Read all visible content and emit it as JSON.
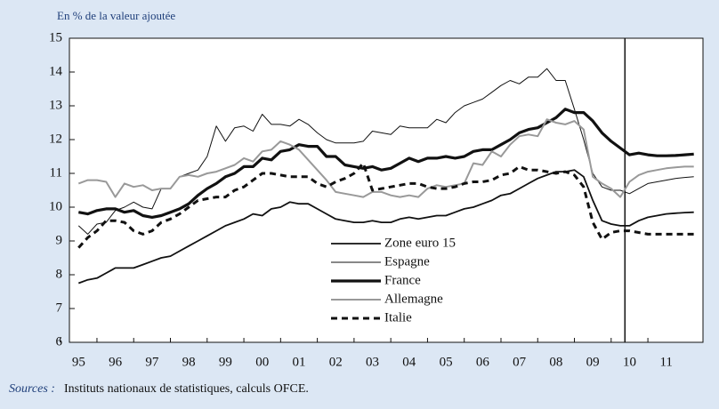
{
  "chart_data": {
    "type": "line",
    "subtitle": "En % de la valeur ajoutée",
    "sources_label": "Sources :",
    "sources_text": "Instituts nationaux de statistiques, calculs OFCE.",
    "x": [
      1995,
      1995.25,
      1995.5,
      1995.75,
      1996,
      1996.25,
      1996.5,
      1996.75,
      1997,
      1997.25,
      1997.5,
      1997.75,
      1998,
      1998.25,
      1998.5,
      1998.75,
      1999,
      1999.25,
      1999.5,
      1999.75,
      2000,
      2000.25,
      2000.5,
      2000.75,
      2001,
      2001.25,
      2001.5,
      2001.75,
      2002,
      2002.25,
      2002.5,
      2002.75,
      2003,
      2003.25,
      2003.5,
      2003.75,
      2004,
      2004.25,
      2004.5,
      2004.75,
      2005,
      2005.25,
      2005.5,
      2005.75,
      2006,
      2006.25,
      2006.5,
      2006.75,
      2007,
      2007.25,
      2007.5,
      2007.75,
      2008,
      2008.25,
      2008.5,
      2008.75,
      2009,
      2009.25,
      2009.5,
      2009.75,
      2010,
      2010.25,
      2010.5,
      2010.75,
      2011,
      2011.25,
      2011.5,
      2011.75
    ],
    "xlim": [
      1994.75,
      2012
    ],
    "xticks": [
      {
        "value": 1995,
        "label": "95"
      },
      {
        "value": 1996,
        "label": "96"
      },
      {
        "value": 1997,
        "label": "97"
      },
      {
        "value": 1998,
        "label": "98"
      },
      {
        "value": 1999,
        "label": "99"
      },
      {
        "value": 2000,
        "label": "00"
      },
      {
        "value": 2001,
        "label": "01"
      },
      {
        "value": 2002,
        "label": "02"
      },
      {
        "value": 2003,
        "label": "03"
      },
      {
        "value": 2004,
        "label": "04"
      },
      {
        "value": 2005,
        "label": "05"
      },
      {
        "value": 2006,
        "label": "06"
      },
      {
        "value": 2007,
        "label": "07"
      },
      {
        "value": 2008,
        "label": "08"
      },
      {
        "value": 2009,
        "label": "09"
      },
      {
        "value": 2010,
        "label": "10"
      },
      {
        "value": 2011,
        "label": "11"
      }
    ],
    "ylim": [
      6,
      15
    ],
    "yticks": [
      6,
      7,
      8,
      9,
      10,
      11,
      12,
      13,
      14,
      15
    ],
    "forecast_line": 2009.875,
    "series": [
      {
        "name": "Zone euro 15",
        "color": "#111111",
        "line_width": 1.8,
        "dashed": false,
        "values": [
          7.75,
          7.85,
          7.9,
          8.05,
          8.2,
          8.2,
          8.2,
          8.3,
          8.4,
          8.5,
          8.55,
          8.7,
          8.85,
          9.0,
          9.15,
          9.3,
          9.45,
          9.55,
          9.65,
          9.8,
          9.75,
          9.95,
          10.0,
          10.15,
          10.1,
          10.1,
          9.95,
          9.8,
          9.65,
          9.6,
          9.55,
          9.55,
          9.6,
          9.55,
          9.55,
          9.65,
          9.7,
          9.65,
          9.7,
          9.75,
          9.75,
          9.85,
          9.95,
          10.0,
          10.1,
          10.2,
          10.35,
          10.4,
          10.55,
          10.7,
          10.85,
          10.95,
          11.05,
          11.05,
          11.1,
          10.9,
          10.2,
          9.6,
          9.5,
          9.45,
          9.45,
          9.6,
          9.7,
          9.75,
          9.8,
          9.82,
          9.84,
          9.85
        ]
      },
      {
        "name": "Espagne",
        "color": "#111111",
        "line_width": 1,
        "dashed": false,
        "values": [
          9.45,
          9.2,
          9.5,
          9.55,
          9.9,
          10.0,
          10.15,
          10.0,
          9.95,
          10.55,
          10.55,
          10.9,
          11.0,
          11.1,
          11.5,
          12.4,
          11.95,
          12.35,
          12.4,
          12.25,
          12.75,
          12.45,
          12.45,
          12.4,
          12.6,
          12.45,
          12.2,
          12.0,
          11.9,
          11.9,
          11.9,
          11.95,
          12.25,
          12.2,
          12.15,
          12.4,
          12.35,
          12.35,
          12.35,
          12.6,
          12.5,
          12.8,
          13.0,
          13.1,
          13.2,
          13.4,
          13.6,
          13.75,
          13.65,
          13.85,
          13.85,
          14.1,
          13.75,
          13.75,
          12.9,
          12.0,
          11.0,
          10.6,
          10.5,
          10.5,
          10.4,
          10.55,
          10.7,
          10.75,
          10.8,
          10.85,
          10.88,
          10.9
        ]
      },
      {
        "name": "France",
        "color": "#111111",
        "line_width": 3.2,
        "dashed": false,
        "values": [
          9.85,
          9.8,
          9.9,
          9.95,
          9.95,
          9.85,
          9.9,
          9.75,
          9.7,
          9.75,
          9.85,
          9.95,
          10.1,
          10.35,
          10.55,
          10.7,
          10.9,
          11.0,
          11.2,
          11.2,
          11.45,
          11.4,
          11.65,
          11.7,
          11.85,
          11.8,
          11.8,
          11.5,
          11.5,
          11.25,
          11.2,
          11.15,
          11.2,
          11.1,
          11.15,
          11.3,
          11.45,
          11.35,
          11.45,
          11.45,
          11.5,
          11.45,
          11.5,
          11.65,
          11.7,
          11.7,
          11.85,
          12.0,
          12.2,
          12.3,
          12.35,
          12.5,
          12.65,
          12.9,
          12.8,
          12.8,
          12.55,
          12.2,
          11.95,
          11.75,
          11.55,
          11.6,
          11.55,
          11.52,
          11.52,
          11.53,
          11.55,
          11.57
        ]
      },
      {
        "name": "Allemagne",
        "color": "#999999",
        "line_width": 2,
        "dashed": false,
        "values": [
          10.7,
          10.8,
          10.8,
          10.75,
          10.3,
          10.7,
          10.6,
          10.65,
          10.5,
          10.55,
          10.55,
          10.9,
          10.95,
          10.9,
          11.0,
          11.05,
          11.15,
          11.25,
          11.45,
          11.35,
          11.65,
          11.7,
          11.95,
          11.85,
          11.7,
          11.4,
          11.1,
          10.8,
          10.45,
          10.4,
          10.35,
          10.3,
          10.45,
          10.45,
          10.35,
          10.3,
          10.35,
          10.3,
          10.55,
          10.65,
          10.6,
          10.65,
          10.7,
          11.3,
          11.25,
          11.65,
          11.5,
          11.85,
          12.1,
          12.15,
          12.1,
          12.6,
          12.5,
          12.45,
          12.55,
          12.3,
          10.9,
          10.7,
          10.55,
          10.3,
          10.75,
          10.95,
          11.05,
          11.1,
          11.15,
          11.18,
          11.2,
          11.2
        ]
      },
      {
        "name": "Italie",
        "color": "#111111",
        "line_width": 3,
        "dashed": true,
        "values": [
          8.8,
          9.1,
          9.3,
          9.6,
          9.6,
          9.55,
          9.3,
          9.2,
          9.3,
          9.55,
          9.65,
          9.8,
          10.0,
          10.2,
          10.25,
          10.3,
          10.3,
          10.5,
          10.6,
          10.8,
          11.0,
          11.0,
          10.95,
          10.9,
          10.9,
          10.9,
          10.7,
          10.6,
          10.75,
          10.85,
          11.0,
          11.3,
          10.5,
          10.55,
          10.6,
          10.65,
          10.7,
          10.7,
          10.6,
          10.55,
          10.55,
          10.6,
          10.7,
          10.75,
          10.75,
          10.8,
          10.95,
          11.0,
          11.2,
          11.1,
          11.1,
          11.05,
          11.0,
          11.05,
          10.95,
          10.6,
          9.55,
          9.05,
          9.25,
          9.3,
          9.3,
          9.25,
          9.2,
          9.2,
          9.2,
          9.2,
          9.2,
          9.2
        ]
      }
    ]
  }
}
